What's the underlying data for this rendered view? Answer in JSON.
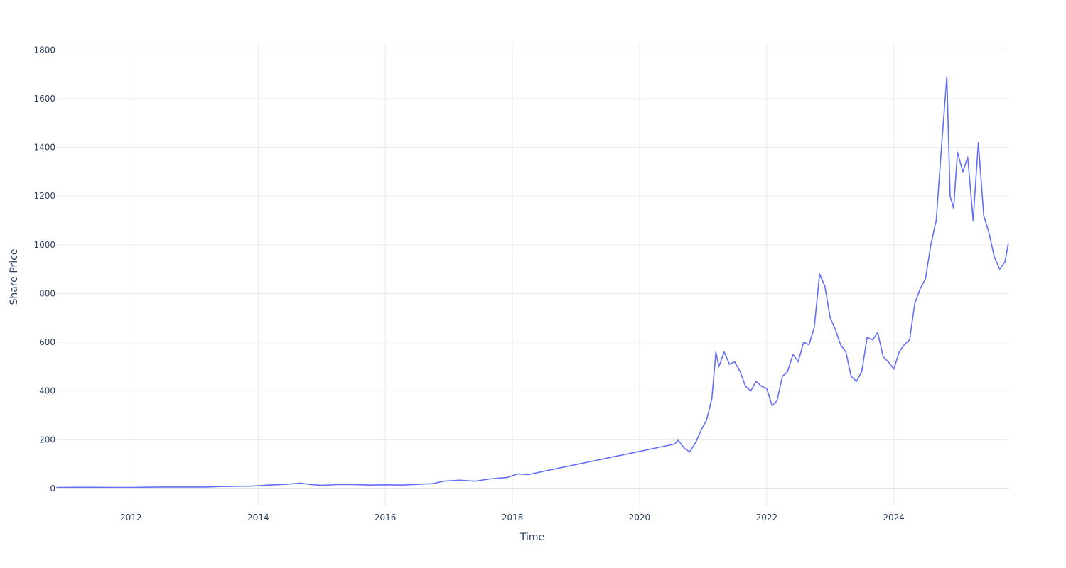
{
  "chart_data": {
    "type": "line",
    "title": "",
    "xlabel": "Time",
    "ylabel": "Share Price",
    "xlim": [
      "2010-11-01",
      "2025-10-25"
    ],
    "ylim": [
      -70,
      1830
    ],
    "x_ticks": [
      "2012",
      "2014",
      "2016",
      "2018",
      "2020",
      "2022",
      "2024"
    ],
    "y_ticks": [
      0,
      200,
      400,
      600,
      800,
      1000,
      1200,
      1400,
      1600,
      1800
    ],
    "grid": true,
    "legend": "none",
    "colors": {
      "line": "#636efa",
      "grid": "#ebebf0",
      "text": "#2a3f5f"
    },
    "series": [
      {
        "points": [
          [
            "2010-11-01",
            4
          ],
          [
            "2011-03-01",
            5
          ],
          [
            "2011-06-01",
            5
          ],
          [
            "2011-09-01",
            4
          ],
          [
            "2012-01-01",
            4
          ],
          [
            "2012-06-01",
            6
          ],
          [
            "2012-12-01",
            6
          ],
          [
            "2013-03-01",
            6
          ],
          [
            "2013-06-01",
            8
          ],
          [
            "2013-12-01",
            10
          ],
          [
            "2014-03-01",
            14
          ],
          [
            "2014-06-01",
            17
          ],
          [
            "2014-09-01",
            22
          ],
          [
            "2014-11-01",
            16
          ],
          [
            "2015-01-01",
            13
          ],
          [
            "2015-04-01",
            16
          ],
          [
            "2015-07-01",
            16
          ],
          [
            "2015-10-01",
            14
          ],
          [
            "2016-01-01",
            15
          ],
          [
            "2016-04-01",
            14
          ],
          [
            "2016-07-01",
            17
          ],
          [
            "2016-10-01",
            20
          ],
          [
            "2016-12-01",
            30
          ],
          [
            "2017-03-01",
            34
          ],
          [
            "2017-06-01",
            30
          ],
          [
            "2017-09-01",
            40
          ],
          [
            "2017-12-01",
            45
          ],
          [
            "2018-02-01",
            60
          ],
          [
            "2018-04-01",
            57
          ],
          [
            "2020-07-20",
            182
          ],
          [
            "2020-08-10",
            198
          ],
          [
            "2020-09-15",
            165
          ],
          [
            "2020-10-15",
            150
          ],
          [
            "2020-11-20",
            190
          ],
          [
            "2020-12-20",
            240
          ],
          [
            "2021-01-20",
            280
          ],
          [
            "2021-02-20",
            370
          ],
          [
            "2021-03-15",
            560
          ],
          [
            "2021-04-01",
            500
          ],
          [
            "2021-05-01",
            560
          ],
          [
            "2021-06-01",
            510
          ],
          [
            "2021-07-01",
            520
          ],
          [
            "2021-08-01",
            480
          ],
          [
            "2021-09-01",
            420
          ],
          [
            "2021-10-01",
            400
          ],
          [
            "2021-11-01",
            440
          ],
          [
            "2021-12-01",
            420
          ],
          [
            "2022-01-01",
            410
          ],
          [
            "2022-02-01",
            340
          ],
          [
            "2022-03-01",
            360
          ],
          [
            "2022-04-01",
            460
          ],
          [
            "2022-05-01",
            480
          ],
          [
            "2022-06-01",
            550
          ],
          [
            "2022-07-01",
            520
          ],
          [
            "2022-08-01",
            600
          ],
          [
            "2022-09-01",
            590
          ],
          [
            "2022-10-01",
            660
          ],
          [
            "2022-11-01",
            880
          ],
          [
            "2022-12-01",
            830
          ],
          [
            "2023-01-01",
            700
          ],
          [
            "2023-02-01",
            650
          ],
          [
            "2023-03-01",
            590
          ],
          [
            "2023-04-01",
            560
          ],
          [
            "2023-05-01",
            460
          ],
          [
            "2023-06-01",
            440
          ],
          [
            "2023-07-01",
            480
          ],
          [
            "2023-08-01",
            620
          ],
          [
            "2023-09-01",
            610
          ],
          [
            "2023-10-01",
            640
          ],
          [
            "2023-11-01",
            540
          ],
          [
            "2023-12-01",
            520
          ],
          [
            "2024-01-01",
            490
          ],
          [
            "2024-02-01",
            560
          ],
          [
            "2024-03-01",
            590
          ],
          [
            "2024-04-01",
            610
          ],
          [
            "2024-05-01",
            760
          ],
          [
            "2024-06-01",
            820
          ],
          [
            "2024-07-01",
            860
          ],
          [
            "2024-08-01",
            1000
          ],
          [
            "2024-09-01",
            1100
          ],
          [
            "2024-10-01",
            1400
          ],
          [
            "2024-11-01",
            1690
          ],
          [
            "2024-11-20",
            1200
          ],
          [
            "2024-12-10",
            1150
          ],
          [
            "2025-01-01",
            1380
          ],
          [
            "2025-02-01",
            1300
          ],
          [
            "2025-03-01",
            1360
          ],
          [
            "2025-04-01",
            1100
          ],
          [
            "2025-05-01",
            1420
          ],
          [
            "2025-06-01",
            1120
          ],
          [
            "2025-07-01",
            1050
          ],
          [
            "2025-08-01",
            950
          ],
          [
            "2025-09-01",
            900
          ],
          [
            "2025-10-01",
            930
          ],
          [
            "2025-10-20",
            1005
          ]
        ]
      }
    ]
  }
}
